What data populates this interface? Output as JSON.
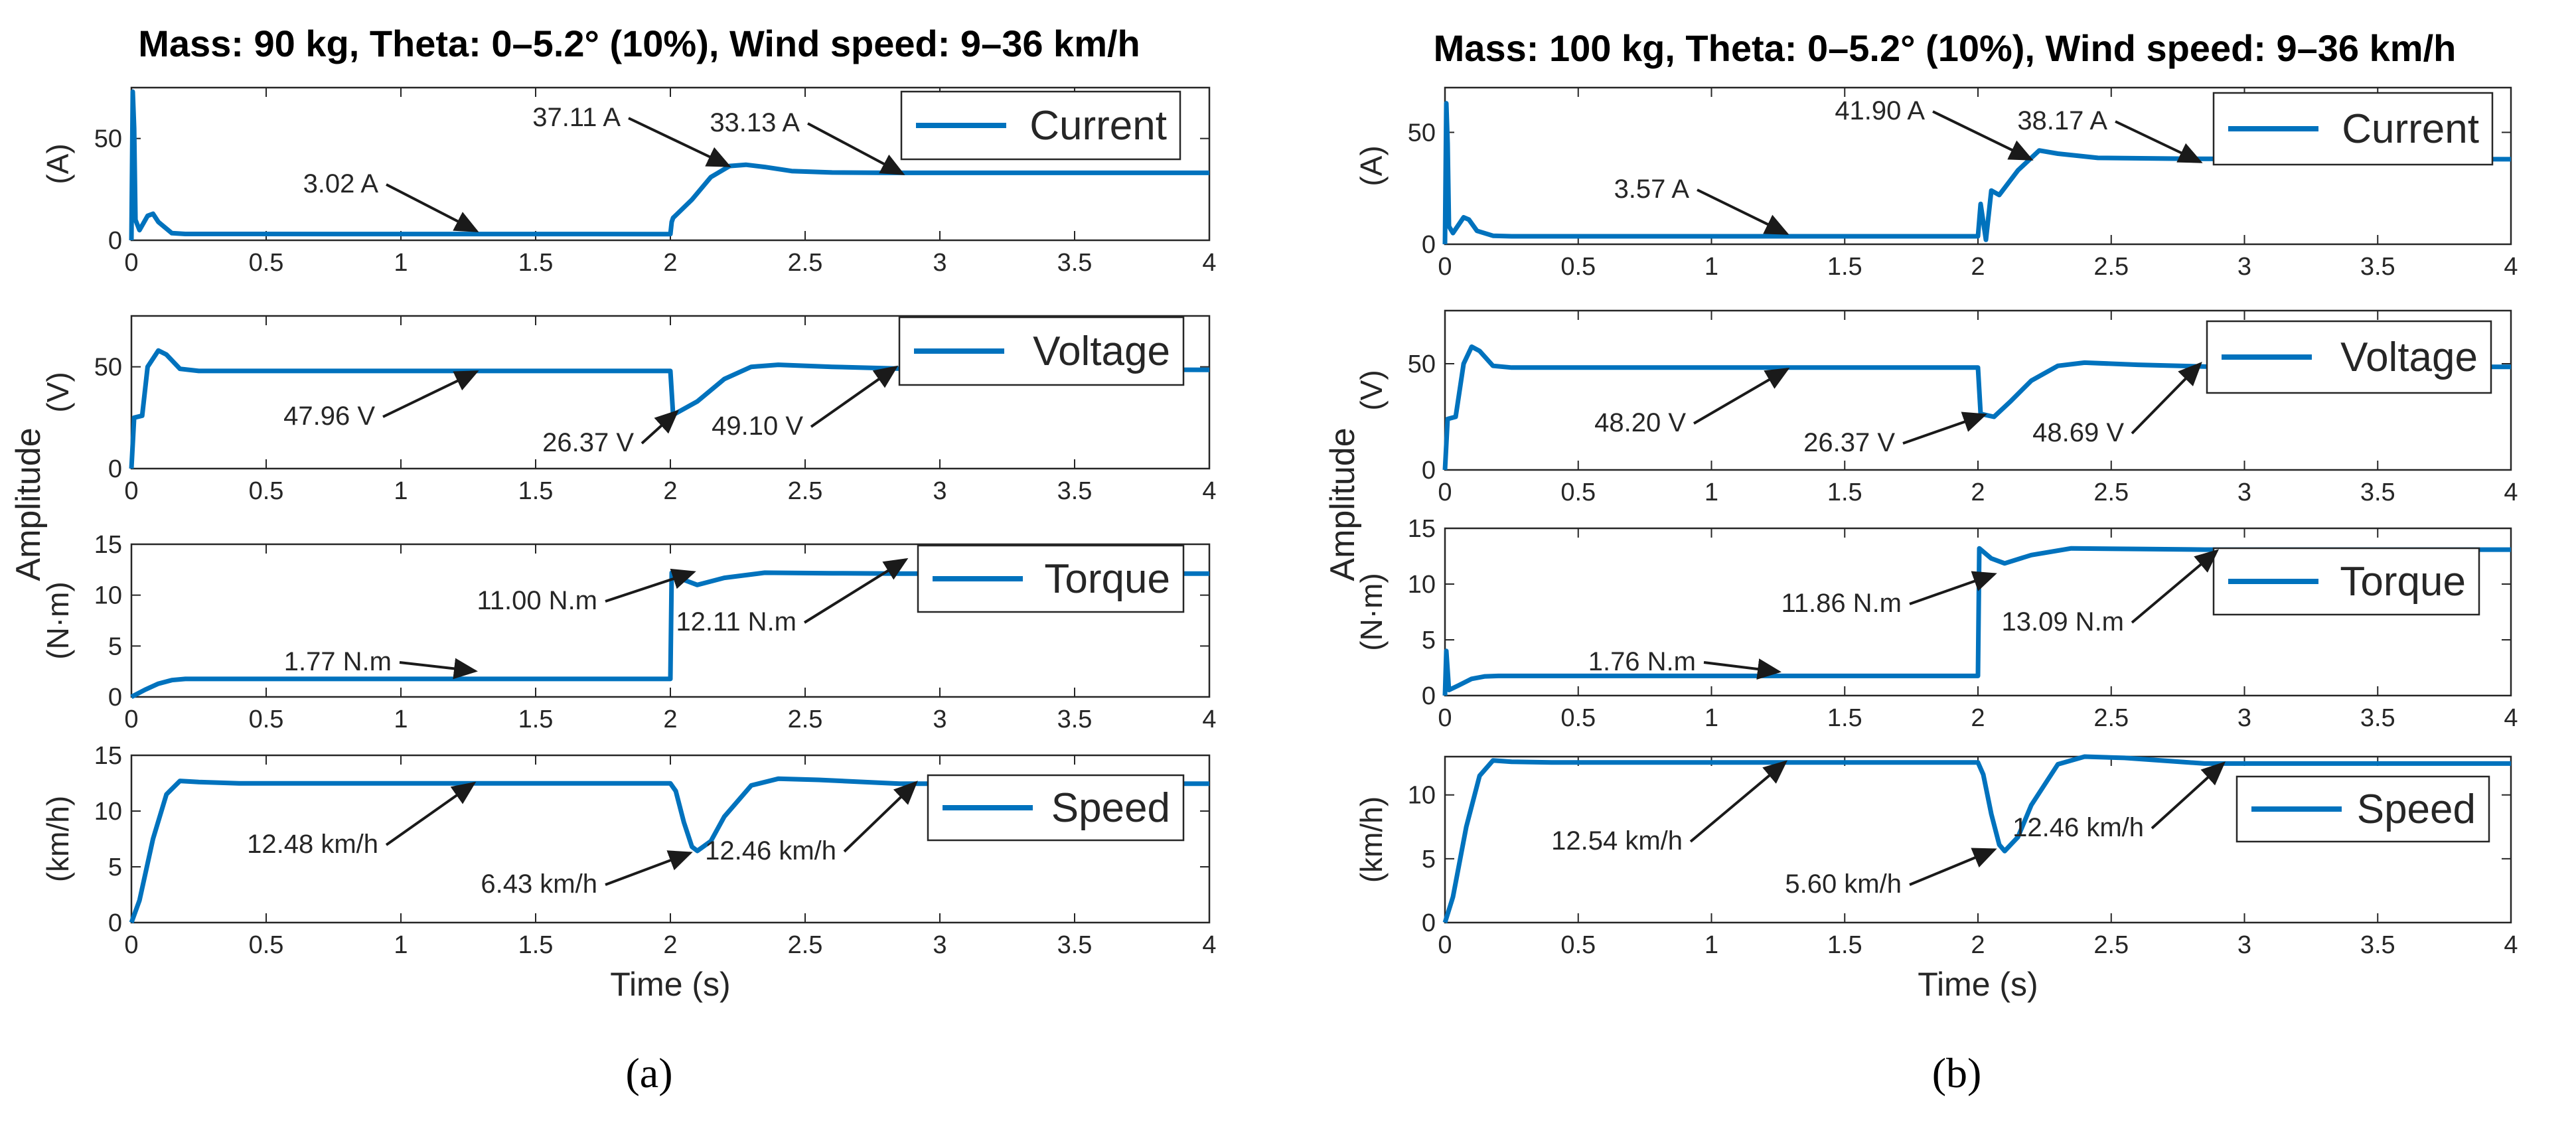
{
  "chart_data": [
    {
      "type": "line",
      "panel": "a",
      "caption": "(a)",
      "title": "Mass: 90 kg, Theta: 0–5.2° (10%), Wind speed: 9–36 km/h",
      "xlabel": "Time (s)",
      "ylabel": "Amplitude",
      "xlim": [
        0,
        4
      ],
      "x_ticks": [
        "0",
        "0.5",
        "1",
        "1.5",
        "2",
        "2.5",
        "3",
        "3.5",
        "4"
      ],
      "series_color": "#0072BD",
      "subplots": [
        {
          "name": "Current",
          "legend": "Current",
          "ylabel": "(A)",
          "ylim": [
            0,
            75
          ],
          "y_ticks": [
            "0",
            "50"
          ],
          "y_tick_values": [
            0,
            50
          ],
          "trace": [
            [
              0,
              0
            ],
            [
              0.005,
              73
            ],
            [
              0.01,
              55
            ],
            [
              0.015,
              10
            ],
            [
              0.03,
              5
            ],
            [
              0.06,
              12
            ],
            [
              0.08,
              13
            ],
            [
              0.1,
              9
            ],
            [
              0.15,
              3.5
            ],
            [
              0.2,
              3.1
            ],
            [
              2.0,
              3.02
            ],
            [
              2.005,
              9
            ],
            [
              2.01,
              11
            ],
            [
              2.08,
              20
            ],
            [
              2.15,
              31
            ],
            [
              2.22,
              36.5
            ],
            [
              2.28,
              37.11
            ],
            [
              2.35,
              36
            ],
            [
              2.45,
              34
            ],
            [
              2.6,
              33.3
            ],
            [
              2.8,
              33.13
            ],
            [
              4.0,
              33.13
            ]
          ],
          "annotations": [
            {
              "label": "3.02 A",
              "x": 1.27,
              "y": 3.02
            },
            {
              "label": "37.11 A",
              "x": 2.22,
              "y": 37.11
            },
            {
              "label": "33.13 A",
              "x": 2.85,
              "y": 33.13
            }
          ]
        },
        {
          "name": "Voltage",
          "legend": "Voltage",
          "ylabel": "(V)",
          "ylim": [
            0,
            75
          ],
          "y_ticks": [
            "0",
            "50"
          ],
          "y_tick_values": [
            0,
            50
          ],
          "trace": [
            [
              0,
              0
            ],
            [
              0.01,
              25
            ],
            [
              0.04,
              26
            ],
            [
              0.06,
              50
            ],
            [
              0.1,
              58
            ],
            [
              0.13,
              56
            ],
            [
              0.18,
              49
            ],
            [
              0.25,
              47.96
            ],
            [
              2.0,
              47.96
            ],
            [
              2.01,
              26.37
            ],
            [
              2.1,
              33
            ],
            [
              2.2,
              44
            ],
            [
              2.3,
              50
            ],
            [
              2.4,
              51
            ],
            [
              2.6,
              50
            ],
            [
              2.85,
              49.1
            ],
            [
              4.0,
              48.5
            ]
          ],
          "annotations": [
            {
              "label": "47.96 V",
              "x": 1.29,
              "y": 47.96
            },
            {
              "label": "26.37 V",
              "x": 2.02,
              "y": 26.37
            },
            {
              "label": "49.10 V",
              "x": 2.85,
              "y": 49.1
            }
          ]
        },
        {
          "name": "Torque",
          "legend": "Torque",
          "ylabel": "(N·m)",
          "ylim": [
            0,
            15
          ],
          "y_ticks": [
            "0",
            "5",
            "10",
            "15"
          ],
          "y_tick_values": [
            0,
            5,
            10,
            15
          ],
          "trace": [
            [
              0,
              0
            ],
            [
              0.05,
              0.7
            ],
            [
              0.1,
              1.3
            ],
            [
              0.15,
              1.65
            ],
            [
              0.2,
              1.77
            ],
            [
              2.0,
              1.77
            ],
            [
              2.005,
              12.2
            ],
            [
              2.04,
              11.6
            ],
            [
              2.1,
              11.0
            ],
            [
              2.2,
              11.7
            ],
            [
              2.35,
              12.2
            ],
            [
              2.6,
              12.15
            ],
            [
              2.85,
              12.11
            ],
            [
              4.0,
              12.11
            ]
          ],
          "annotations": [
            {
              "label": "1.77 N.m",
              "x": 1.26,
              "y": 1.77
            },
            {
              "label": "11.00 N.m",
              "x": 2.1,
              "y": 11.0
            },
            {
              "label": "12.11 N.m",
              "x": 2.86,
              "y": 12.11
            }
          ]
        },
        {
          "name": "Speed",
          "legend": "Speed",
          "ylabel": "(km/h)",
          "ylim": [
            0,
            15
          ],
          "y_ticks": [
            "0",
            "5",
            "10",
            "15"
          ],
          "y_tick_values": [
            0,
            5,
            10,
            15
          ],
          "trace": [
            [
              0,
              0
            ],
            [
              0.03,
              2
            ],
            [
              0.08,
              7.5
            ],
            [
              0.13,
              11.5
            ],
            [
              0.18,
              12.7
            ],
            [
              0.25,
              12.6
            ],
            [
              0.4,
              12.48
            ],
            [
              2.0,
              12.48
            ],
            [
              2.02,
              11.8
            ],
            [
              2.05,
              9
            ],
            [
              2.08,
              6.8
            ],
            [
              2.1,
              6.43
            ],
            [
              2.15,
              7.3
            ],
            [
              2.2,
              9.5
            ],
            [
              2.3,
              12.3
            ],
            [
              2.4,
              12.9
            ],
            [
              2.55,
              12.8
            ],
            [
              2.85,
              12.46
            ],
            [
              4.0,
              12.46
            ]
          ],
          "annotations": [
            {
              "label": "12.48 km/h",
              "x": 1.28,
              "y": 12.48
            },
            {
              "label": "6.43 km/h",
              "x": 2.1,
              "y": 6.43
            },
            {
              "label": "12.46 km/h",
              "x": 2.88,
              "y": 12.46
            }
          ]
        }
      ]
    },
    {
      "type": "line",
      "panel": "b",
      "caption": "(b)",
      "title": "Mass: 100 kg, Theta: 0–5.2° (10%), Wind speed: 9–36 km/h",
      "xlabel": "Time (s)",
      "ylabel": "Amplitude",
      "xlim": [
        0,
        4
      ],
      "x_ticks": [
        "0",
        "0.5",
        "1",
        "1.5",
        "2",
        "2.5",
        "3",
        "3.5",
        "4"
      ],
      "series_color": "#0072BD",
      "subplots": [
        {
          "name": "Current",
          "legend": "Current",
          "ylabel": "(A)",
          "ylim": [
            0,
            70
          ],
          "y_ticks": [
            "0",
            "50"
          ],
          "y_tick_values": [
            0,
            50
          ],
          "trace": [
            [
              0,
              0
            ],
            [
              0.005,
              63
            ],
            [
              0.01,
              45
            ],
            [
              0.015,
              8
            ],
            [
              0.03,
              5
            ],
            [
              0.07,
              12
            ],
            [
              0.09,
              11
            ],
            [
              0.12,
              6
            ],
            [
              0.18,
              3.8
            ],
            [
              0.25,
              3.57
            ],
            [
              2.0,
              3.57
            ],
            [
              2.01,
              18
            ],
            [
              2.03,
              2
            ],
            [
              2.05,
              24
            ],
            [
              2.08,
              22
            ],
            [
              2.15,
              33
            ],
            [
              2.23,
              41.9
            ],
            [
              2.3,
              40.5
            ],
            [
              2.45,
              38.6
            ],
            [
              2.8,
              38.17
            ],
            [
              4.0,
              38.0
            ]
          ],
          "annotations": [
            {
              "label": "3.57 A",
              "x": 1.27,
              "y": 3.57
            },
            {
              "label": "41.90 A",
              "x": 2.22,
              "y": 41.9
            },
            {
              "label": "38.17 A",
              "x": 2.85,
              "y": 38.17
            }
          ]
        },
        {
          "name": "Voltage",
          "legend": "Voltage",
          "ylabel": "(V)",
          "ylim": [
            0,
            75
          ],
          "y_ticks": [
            "0",
            "50"
          ],
          "y_tick_values": [
            0,
            50
          ],
          "trace": [
            [
              0,
              0
            ],
            [
              0.01,
              24
            ],
            [
              0.04,
              25
            ],
            [
              0.07,
              50
            ],
            [
              0.1,
              58
            ],
            [
              0.13,
              56
            ],
            [
              0.18,
              49
            ],
            [
              0.25,
              48.2
            ],
            [
              2.0,
              48.2
            ],
            [
              2.01,
              26.37
            ],
            [
              2.06,
              25
            ],
            [
              2.12,
              32
            ],
            [
              2.2,
              42
            ],
            [
              2.3,
              49
            ],
            [
              2.4,
              50.5
            ],
            [
              2.6,
              49.5
            ],
            [
              2.85,
              48.69
            ],
            [
              4.0,
              48.5
            ]
          ],
          "annotations": [
            {
              "label": "48.20 V",
              "x": 1.27,
              "y": 48.2
            },
            {
              "label": "26.37 V",
              "x": 2.04,
              "y": 26.37
            },
            {
              "label": "48.69 V",
              "x": 2.85,
              "y": 48.69
            }
          ]
        },
        {
          "name": "Torque",
          "legend": "Torque",
          "ylabel": "(N·m)",
          "ylim": [
            0,
            15
          ],
          "y_ticks": [
            "0",
            "5",
            "10",
            "15"
          ],
          "y_tick_values": [
            0,
            5,
            10,
            15
          ],
          "trace": [
            [
              0,
              0
            ],
            [
              0.005,
              4
            ],
            [
              0.015,
              0.5
            ],
            [
              0.05,
              0.9
            ],
            [
              0.1,
              1.5
            ],
            [
              0.15,
              1.72
            ],
            [
              0.2,
              1.76
            ],
            [
              2.0,
              1.76
            ],
            [
              2.005,
              13.2
            ],
            [
              2.05,
              12.3
            ],
            [
              2.1,
              11.86
            ],
            [
              2.2,
              12.6
            ],
            [
              2.35,
              13.2
            ],
            [
              2.6,
              13.15
            ],
            [
              2.85,
              13.09
            ],
            [
              4.0,
              13.09
            ]
          ],
          "annotations": [
            {
              "label": "1.76 N.m",
              "x": 1.26,
              "y": 1.76
            },
            {
              "label": "11.86 N.m",
              "x": 2.1,
              "y": 11.86
            },
            {
              "label": "13.09 N.m",
              "x": 2.86,
              "y": 13.09
            }
          ]
        },
        {
          "name": "Speed",
          "legend": "Speed",
          "ylabel": "(km/h)",
          "ylim": [
            0,
            13
          ],
          "y_ticks": [
            "0",
            "5",
            "10"
          ],
          "y_tick_values": [
            0,
            5,
            10
          ],
          "trace": [
            [
              0,
              0
            ],
            [
              0.03,
              2
            ],
            [
              0.08,
              7.5
            ],
            [
              0.13,
              11.5
            ],
            [
              0.18,
              12.7
            ],
            [
              0.25,
              12.6
            ],
            [
              0.4,
              12.54
            ],
            [
              2.0,
              12.54
            ],
            [
              2.02,
              11.6
            ],
            [
              2.05,
              8.5
            ],
            [
              2.08,
              6.1
            ],
            [
              2.1,
              5.6
            ],
            [
              2.15,
              6.7
            ],
            [
              2.2,
              9.2
            ],
            [
              2.3,
              12.4
            ],
            [
              2.4,
              13
            ],
            [
              2.55,
              12.9
            ],
            [
              2.85,
              12.46
            ],
            [
              4.0,
              12.46
            ]
          ],
          "annotations": [
            {
              "label": "12.54 km/h",
              "x": 1.27,
              "y": 12.54
            },
            {
              "label": "5.60 km/h",
              "x": 2.1,
              "y": 5.6
            },
            {
              "label": "12.46 km/h",
              "x": 2.87,
              "y": 12.46
            }
          ]
        }
      ]
    }
  ]
}
